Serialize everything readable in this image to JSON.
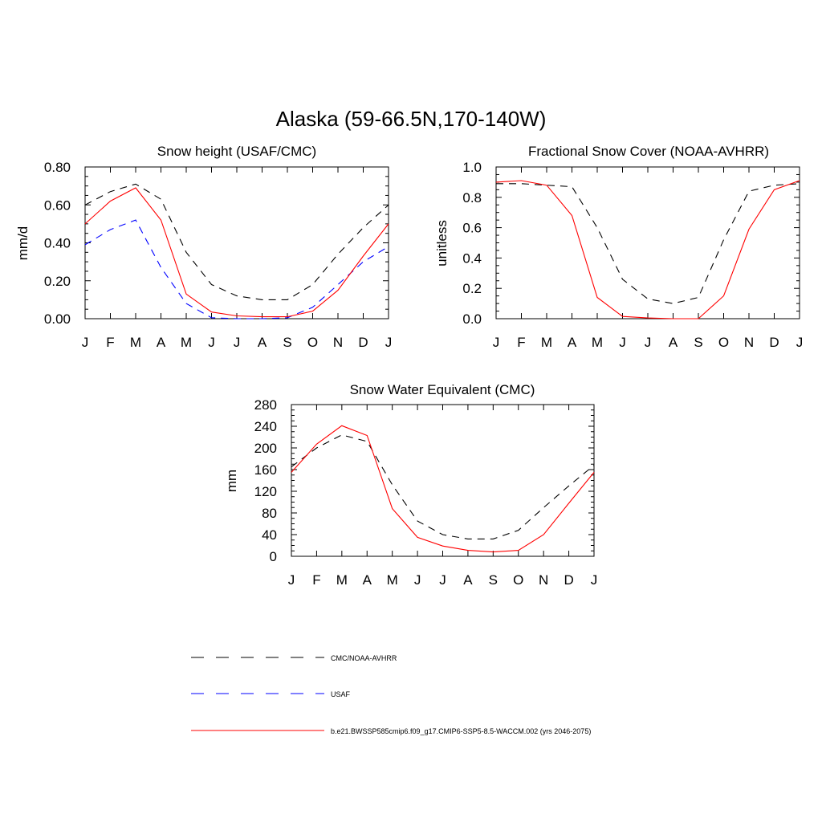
{
  "title": "Alaska (59-66.5N,170-140W)",
  "colors": {
    "obs": "#000000",
    "usaf": "#0000ff",
    "model": "#ff0000"
  },
  "legend": [
    {
      "label": "CMC/NOAA-AVHRR",
      "style": "dashed",
      "color": "#000000"
    },
    {
      "label": "USAF",
      "style": "dashed",
      "color": "#0000ff"
    },
    {
      "label": "b.e21.BWSSP585cmip6.f09_g17.CMIP6-SSP5-8.5-WACCM.002 (yrs 2046-2075)",
      "style": "solid",
      "color": "#ff0000"
    }
  ],
  "chart_data": [
    {
      "type": "line",
      "title": "Snow height (USAF/CMC)",
      "xlabel": "",
      "ylabel": "mm/d",
      "categories": [
        "J",
        "F",
        "M",
        "A",
        "M",
        "J",
        "J",
        "A",
        "S",
        "O",
        "N",
        "D",
        "J"
      ],
      "ylim": [
        0,
        0.8
      ],
      "yticks": [
        "0.00",
        "0.20",
        "0.40",
        "0.60",
        "0.80"
      ],
      "series": [
        {
          "name": "CMC/NOAA-AVHRR",
          "style": "dashed",
          "color": "#000000",
          "values": [
            0.6,
            0.67,
            0.71,
            0.63,
            0.35,
            0.18,
            0.12,
            0.1,
            0.1,
            0.18,
            0.34,
            0.48,
            0.6
          ]
        },
        {
          "name": "USAF",
          "style": "dashed",
          "color": "#0000ff",
          "values": [
            0.39,
            0.47,
            0.52,
            0.27,
            0.08,
            0.005,
            0.0,
            0.0,
            0.005,
            0.06,
            0.18,
            0.3,
            0.38
          ]
        },
        {
          "name": "b.e21.BWSSP585cmip6.f09_g17.CMIP6-SSP5-8.5-WACCM.002 (yrs 2046-2075)",
          "style": "solid",
          "color": "#ff0000",
          "values": [
            0.5,
            0.62,
            0.69,
            0.52,
            0.13,
            0.035,
            0.015,
            0.01,
            0.01,
            0.04,
            0.15,
            0.33,
            0.5
          ]
        }
      ]
    },
    {
      "type": "line",
      "title": "Fractional Snow Cover (NOAA-AVHRR)",
      "xlabel": "",
      "ylabel": "unitless",
      "categories": [
        "J",
        "F",
        "M",
        "A",
        "M",
        "J",
        "J",
        "A",
        "S",
        "O",
        "N",
        "D",
        "J"
      ],
      "ylim": [
        0,
        1.0
      ],
      "yticks": [
        "0.0",
        "0.2",
        "0.4",
        "0.6",
        "0.8",
        "1.0"
      ],
      "series": [
        {
          "name": "CMC/NOAA-AVHRR",
          "style": "dashed",
          "color": "#000000",
          "values": [
            0.89,
            0.89,
            0.88,
            0.87,
            0.6,
            0.26,
            0.13,
            0.1,
            0.14,
            0.52,
            0.84,
            0.88,
            0.89
          ]
        },
        {
          "name": "b.e21.BWSSP585cmip6.f09_g17.CMIP6-SSP5-8.5-WACCM.002 (yrs 2046-2075)",
          "style": "solid",
          "color": "#ff0000",
          "values": [
            0.9,
            0.91,
            0.88,
            0.68,
            0.14,
            0.015,
            0.005,
            0.0,
            0.0,
            0.15,
            0.59,
            0.85,
            0.91
          ]
        }
      ]
    },
    {
      "type": "line",
      "title": "Snow Water Equivalent (CMC)",
      "xlabel": "",
      "ylabel": "mm",
      "categories": [
        "J",
        "F",
        "M",
        "A",
        "M",
        "J",
        "J",
        "A",
        "S",
        "O",
        "N",
        "D",
        "J"
      ],
      "ylim": [
        0,
        280
      ],
      "yticks": [
        "0",
        "40",
        "80",
        "120",
        "160",
        "200",
        "240",
        "280"
      ],
      "series": [
        {
          "name": "CMC/NOAA-AVHRR",
          "style": "dashed",
          "color": "#000000",
          "values": [
            165,
            200,
            224,
            212,
            132,
            65,
            40,
            32,
            32,
            48,
            90,
            130,
            168
          ]
        },
        {
          "name": "b.e21.BWSSP585cmip6.f09_g17.CMIP6-SSP5-8.5-WACCM.002 (yrs 2046-2075)",
          "style": "solid",
          "color": "#ff0000",
          "values": [
            155,
            207,
            241,
            223,
            88,
            35,
            19,
            11,
            8,
            11,
            40,
            98,
            155
          ]
        }
      ]
    }
  ]
}
